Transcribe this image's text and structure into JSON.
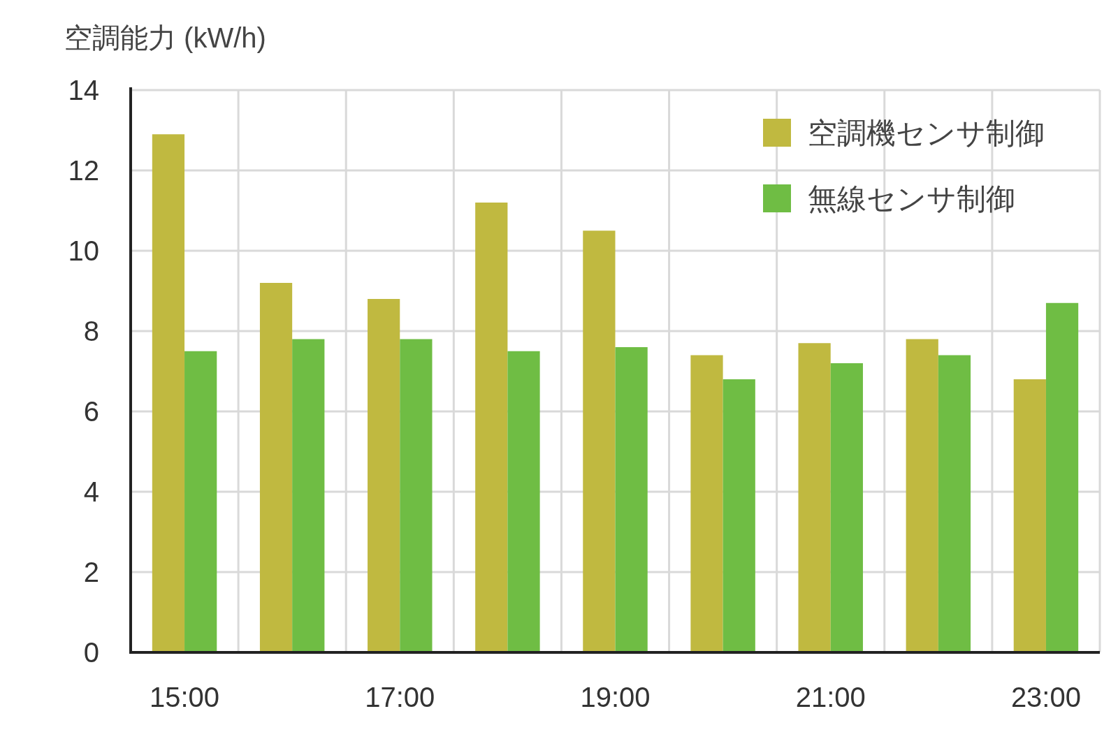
{
  "chart_data": {
    "type": "bar",
    "ylabel": "空調能力 (kW/h)",
    "categories": [
      "15:00",
      null,
      "17:00",
      null,
      "19:00",
      null,
      "21:00",
      null,
      "23:00"
    ],
    "series": [
      {
        "name": "空調機センサ制御",
        "color": "#c0b940",
        "values": [
          12.9,
          9.2,
          8.8,
          11.2,
          10.5,
          7.4,
          7.7,
          7.8,
          6.8
        ]
      },
      {
        "name": "無線センサ制御",
        "color": "#6fbd44",
        "values": [
          7.5,
          7.8,
          7.8,
          7.5,
          7.6,
          6.8,
          7.2,
          7.4,
          8.7
        ]
      }
    ],
    "ylim": [
      0,
      14
    ],
    "yticks": [
      0,
      2,
      4,
      6,
      8,
      10,
      12,
      14
    ],
    "grid": true,
    "legend": "top right"
  }
}
